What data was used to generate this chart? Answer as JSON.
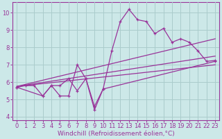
{
  "xlabel": "Windchill (Refroidissement éolien,°C)",
  "bg_color": "#cce8e8",
  "grid_color": "#aacccc",
  "line_color": "#993399",
  "spine_color": "#993399",
  "xlim": [
    -0.5,
    23.5
  ],
  "ylim": [
    3.8,
    10.6
  ],
  "xticks": [
    0,
    1,
    2,
    3,
    4,
    5,
    6,
    7,
    8,
    9,
    10,
    11,
    12,
    13,
    14,
    15,
    16,
    17,
    18,
    19,
    20,
    21,
    22,
    23
  ],
  "yticks": [
    4,
    5,
    6,
    7,
    8,
    9,
    10
  ],
  "axis_label_fontsize": 6.5,
  "tick_fontsize": 6,
  "line1": {
    "x": [
      0,
      1,
      2,
      3,
      4,
      5,
      6,
      7,
      8,
      9,
      10,
      11,
      12,
      13,
      14,
      15,
      16,
      17,
      18,
      19,
      20,
      21,
      22,
      23
    ],
    "y": [
      5.7,
      5.8,
      5.8,
      5.2,
      5.8,
      5.2,
      5.2,
      7.0,
      6.2,
      4.6,
      5.6,
      7.8,
      9.5,
      10.2,
      9.6,
      9.5,
      8.8,
      9.1,
      8.3,
      8.5,
      8.3,
      7.8,
      7.2,
      7.25
    ]
  },
  "line2": {
    "x": [
      0,
      3,
      4,
      5,
      6,
      7,
      8,
      9,
      10,
      23
    ],
    "y": [
      5.7,
      5.2,
      5.8,
      5.8,
      6.2,
      5.5,
      6.2,
      4.4,
      5.6,
      7.2
    ]
  },
  "straight1": {
    "x": [
      0,
      23
    ],
    "y": [
      5.75,
      8.5
    ]
  },
  "straight2": {
    "x": [
      0,
      23
    ],
    "y": [
      5.75,
      7.5
    ]
  },
  "straight3": {
    "x": [
      0,
      23
    ],
    "y": [
      5.75,
      7.0
    ]
  }
}
